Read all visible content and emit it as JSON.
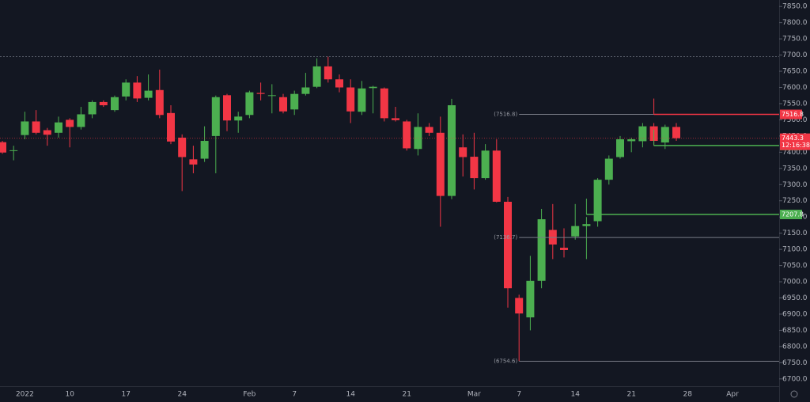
{
  "chart_data": {
    "type": "candlestick",
    "up_color": "#4caf50",
    "down_color": "#f23645",
    "categories": [
      null,
      null,
      "2022",
      null,
      null,
      null,
      "10",
      null,
      null,
      null,
      null,
      "17",
      null,
      null,
      null,
      null,
      "24",
      null,
      null,
      null,
      null,
      null,
      "Feb",
      null,
      null,
      null,
      "7",
      null,
      null,
      null,
      null,
      "14",
      null,
      null,
      null,
      null,
      "21",
      null,
      null,
      null,
      null,
      null,
      "Mar",
      null,
      null,
      null,
      "7",
      null,
      null,
      null,
      null,
      "14",
      null,
      null,
      null,
      null,
      "21",
      null,
      null,
      null,
      null,
      "28",
      null,
      null,
      null,
      "Apr",
      null,
      null,
      null
    ],
    "open": [
      7431,
      7404,
      7453,
      7495,
      7468,
      7460,
      7500,
      7478,
      7517,
      7555,
      7530,
      7572,
      7615,
      7568,
      7592,
      7521,
      7445,
      7378,
      7380,
      7450,
      7576,
      7498,
      7515,
      7583,
      7576,
      7570,
      7532,
      7580,
      7602,
      7665,
      7625,
      7600,
      7525,
      7598,
      7597,
      7505,
      7495,
      7410,
      7478,
      7460,
      7265,
      7415,
      7386,
      7320,
      7405,
      7247,
      6950,
      6890,
      7003,
      7160,
      7105,
      7140,
      7172,
      7187,
      7315,
      7385,
      7434,
      7434,
      7480,
      7430,
      7478,
      null,
      null,
      null,
      null,
      null,
      null,
      null,
      null
    ],
    "high": [
      7435,
      7420,
      7525,
      7530,
      7475,
      7510,
      7505,
      7540,
      7560,
      7560,
      7575,
      7625,
      7635,
      7640,
      7655,
      7545,
      7455,
      7420,
      7480,
      7575,
      7580,
      7525,
      7590,
      7615,
      7610,
      7580,
      7590,
      7645,
      7690,
      7695,
      7640,
      7625,
      7620,
      7605,
      7600,
      7540,
      7500,
      7520,
      7490,
      7510,
      7565,
      7455,
      7460,
      7425,
      7440,
      7262,
      6960,
      7080,
      7225,
      7240,
      7165,
      7240,
      7200,
      7320,
      7390,
      7450,
      7445,
      7490,
      7490,
      7485,
      7490,
      null,
      null,
      null,
      null,
      null,
      null,
      null,
      null
    ],
    "low": [
      7395,
      7375,
      7440,
      7455,
      7420,
      7445,
      7415,
      7470,
      7505,
      7540,
      7525,
      7560,
      7555,
      7560,
      7505,
      7425,
      7280,
      7335,
      7370,
      7335,
      7465,
      7460,
      7505,
      7560,
      7520,
      7520,
      7515,
      7575,
      7598,
      7615,
      7585,
      7490,
      7515,
      7520,
      7495,
      7495,
      7405,
      7390,
      7450,
      7170,
      7255,
      7325,
      7285,
      7315,
      7245,
      6920,
      6755,
      6850,
      6980,
      7070,
      7075,
      7130,
      7070,
      7170,
      7300,
      7380,
      7400,
      7415,
      7420,
      7410,
      7435,
      null,
      null,
      null,
      null,
      null,
      null,
      null,
      null
    ],
    "close": [
      7399,
      7406,
      7495,
      7460,
      7454,
      7492,
      7478,
      7517,
      7555,
      7545,
      7570,
      7615,
      7566,
      7590,
      7515,
      7433,
      7385,
      7362,
      7435,
      7570,
      7498,
      7510,
      7585,
      7580,
      7576,
      7526,
      7580,
      7600,
      7665,
      7625,
      7600,
      7526,
      7597,
      7602,
      7505,
      7499,
      7412,
      7478,
      7460,
      7265,
      7545,
      7385,
      7320,
      7405,
      7247,
      6980,
      6902,
      7003,
      7193,
      7115,
      7098,
      7172,
      7178,
      7315,
      7380,
      7440,
      7440,
      7480,
      7435,
      7478,
      7443.3,
      null,
      null,
      null,
      null,
      null,
      null,
      null,
      null
    ],
    "ylim": [
      6680,
      7870
    ],
    "yticks": [
      {
        "value": 6700,
        "label": "6700.0"
      },
      {
        "value": 6750,
        "label": "6750.0"
      },
      {
        "value": 6800,
        "label": "6800.0"
      },
      {
        "value": 6850,
        "label": "6850.0"
      },
      {
        "value": 6900,
        "label": "6900.0"
      },
      {
        "value": 6950,
        "label": "6950.0"
      },
      {
        "value": 7000,
        "label": "7000.0"
      },
      {
        "value": 7050,
        "label": "7050.0"
      },
      {
        "value": 7100,
        "label": "7100.0"
      },
      {
        "value": 7150,
        "label": "7150.0"
      },
      {
        "value": 7200,
        "label": "7200.0"
      },
      {
        "value": 7250,
        "label": "7250.0"
      },
      {
        "value": 7300,
        "label": "7300.0"
      },
      {
        "value": 7350,
        "label": "7350.0"
      },
      {
        "value": 7400,
        "label": "7400.0"
      },
      {
        "value": 7450,
        "label": "7450.0"
      },
      {
        "value": 7500,
        "label": "7500.0"
      },
      {
        "value": 7550,
        "label": "7550.0"
      },
      {
        "value": 7600,
        "label": "7600.0"
      },
      {
        "value": 7650,
        "label": "7650.0"
      },
      {
        "value": 7700,
        "label": "7700.0"
      },
      {
        "value": 7750,
        "label": "7750.0"
      },
      {
        "value": 7800,
        "label": "7800.0"
      },
      {
        "value": 7850,
        "label": "7850.0"
      }
    ],
    "price_lines": [
      {
        "value": 7516.8,
        "label": "(7516.8)",
        "from": 46
      },
      {
        "value": 7136.7,
        "label": "(7136.7)",
        "from": 46
      },
      {
        "value": 6754.6,
        "label": "(6754.6)",
        "from": 46
      }
    ],
    "levels": [
      {
        "value": 7516.8,
        "color": "#f23645",
        "from": 58
      },
      {
        "value": 7420.8,
        "color": "#4caf50",
        "from": 58
      },
      {
        "value": 7207.8,
        "color": "#4caf50",
        "from": 52
      }
    ],
    "last": {
      "value": 7443.3,
      "countdown": "12:16:38",
      "color": "#f23645"
    }
  }
}
